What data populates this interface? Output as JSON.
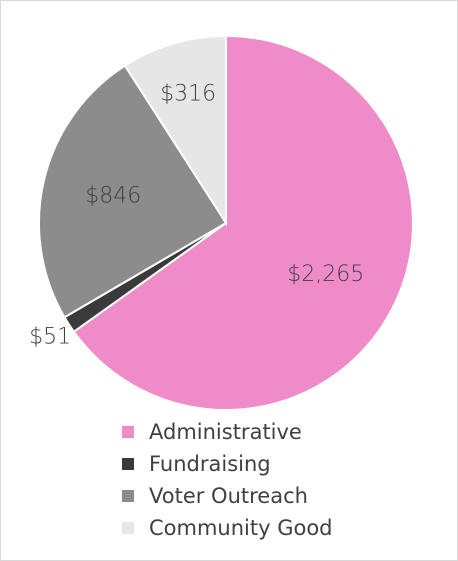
{
  "chart_data": {
    "type": "pie",
    "title": "",
    "categories": [
      "Administrative",
      "Fundraising",
      "Voter Outreach",
      "Community Good"
    ],
    "values": [
      2265,
      51,
      846,
      316
    ],
    "data_labels": [
      "$2,265",
      "$51",
      "$846",
      "$316"
    ],
    "colors": [
      "#ef8bc8",
      "#3a3a3a",
      "#8c8c8c",
      "#e6e6e6"
    ],
    "legend_position": "bottom",
    "start": "top",
    "direction": "clockwise"
  },
  "legend": {
    "items": [
      {
        "label": "Administrative",
        "color": "#ef8bc8"
      },
      {
        "label": "Fundraising",
        "color": "#3a3a3a"
      },
      {
        "label": "Voter Outreach",
        "color": "#8c8c8c"
      },
      {
        "label": "Community Good",
        "color": "#e6e6e6"
      }
    ]
  }
}
